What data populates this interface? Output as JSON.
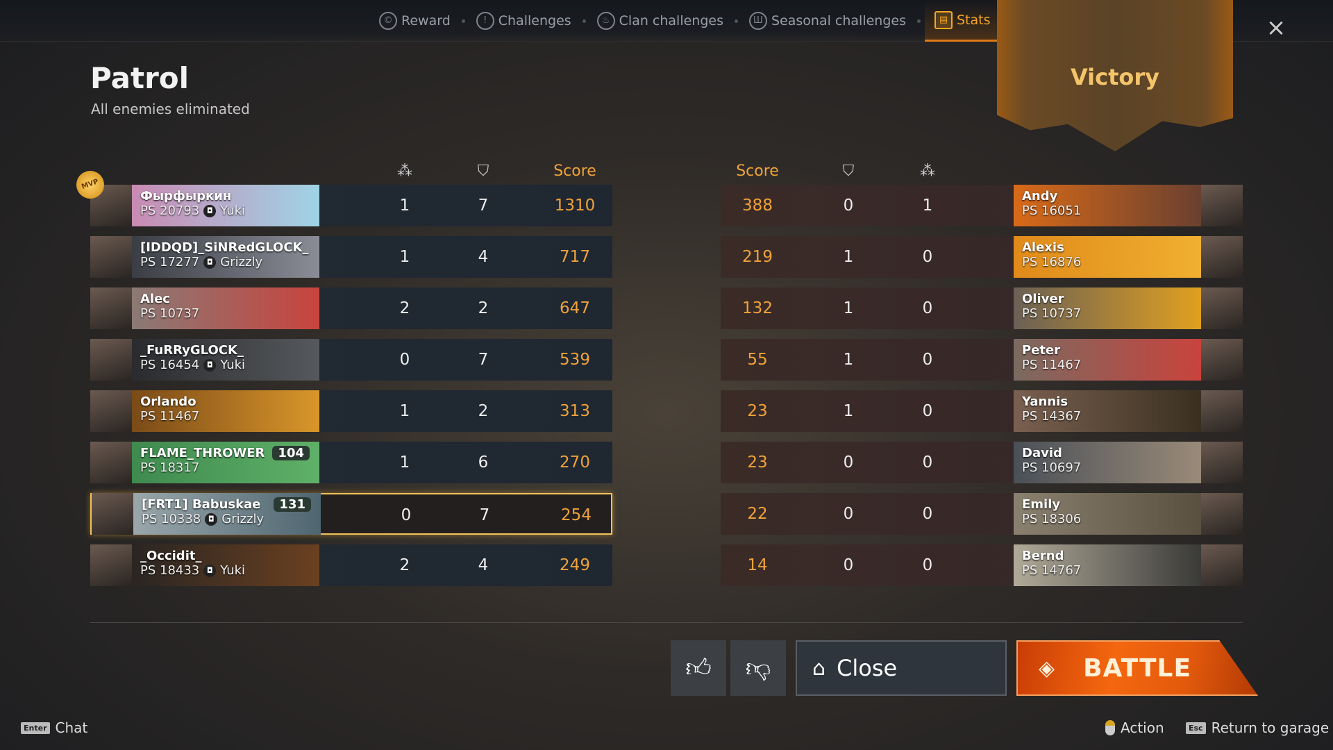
{
  "tabs": [
    {
      "label": "Reward",
      "icon": "reward-icon",
      "glyph": "©"
    },
    {
      "label": "Challenges",
      "icon": "challenges-icon",
      "glyph": "!"
    },
    {
      "label": "Clan challenges",
      "icon": "clan-challenges-icon",
      "glyph": "♨"
    },
    {
      "label": "Seasonal challenges",
      "icon": "seasonal-challenges-icon",
      "glyph": "Ш"
    },
    {
      "label": "Stats",
      "icon": "stats-icon",
      "glyph": "▤",
      "active": true
    }
  ],
  "header": {
    "title": "Patrol",
    "subtitle": "All enemies eliminated",
    "result": "Victory"
  },
  "columns": {
    "score": "Score",
    "kills_icon": "kills-icon",
    "deaths_icon": "shield-icon"
  },
  "mvp_badge": "MVP",
  "accent": "#f0a33a",
  "team_left": [
    {
      "name": "Фырфыркин",
      "ps": "PS 20793",
      "clan": "Yuki",
      "kills": "1",
      "assists": "7",
      "score": "1310",
      "bg": [
        "#c98ab3",
        "#9fd3e6"
      ]
    },
    {
      "name": "[IDDQD]_SiNRedGLOCK_",
      "ps": "PS 17277",
      "clan": "Grizzly",
      "kills": "1",
      "assists": "4",
      "score": "717",
      "bg": [
        "#3a3d44",
        "#8a8d96"
      ]
    },
    {
      "name": "Alec",
      "ps": "PS 10737",
      "clan": "",
      "kills": "2",
      "assists": "2",
      "score": "647",
      "bg": [
        "#8a7a75",
        "#c9433d"
      ]
    },
    {
      "name": "_FuRRyGLOCK_",
      "ps": "PS 16454",
      "clan": "Yuki",
      "kills": "0",
      "assists": "7",
      "score": "539",
      "bg": [
        "#2a2b2e",
        "#55585c"
      ]
    },
    {
      "name": "Orlando",
      "ps": "PS 11467",
      "clan": "",
      "kills": "1",
      "assists": "2",
      "score": "313",
      "bg": [
        "#7a4a18",
        "#d9962a"
      ]
    },
    {
      "name": "FLAME_THROWER",
      "ps": "PS 18317",
      "clan": "",
      "level": "104",
      "kills": "1",
      "assists": "6",
      "score": "270",
      "bg": [
        "#3f8a4f",
        "#5fb068"
      ]
    },
    {
      "name": "[FRT1] Babuskae",
      "ps": "PS 10338",
      "clan": "Grizzly",
      "level": "131",
      "kills": "0",
      "assists": "7",
      "score": "254",
      "bg": [
        "#9aa7ab",
        "#4e6570"
      ],
      "me": true
    },
    {
      "name": "_Occidit_",
      "ps": "PS 18433",
      "clan": "Yuki",
      "kills": "2",
      "assists": "4",
      "score": "249",
      "bg": [
        "#2a2522",
        "#6a4020"
      ]
    }
  ],
  "team_right": [
    {
      "name": "Andy",
      "ps": "PS 16051",
      "score": "388",
      "deaths": "0",
      "kills": "1",
      "bg": [
        "#d86a18",
        "#6a4030"
      ]
    },
    {
      "name": "Alexis",
      "ps": "PS 16876",
      "score": "219",
      "deaths": "1",
      "kills": "0",
      "bg": [
        "#e08a1a",
        "#f0b030"
      ]
    },
    {
      "name": "Oliver",
      "ps": "PS 10737",
      "score": "132",
      "deaths": "1",
      "kills": "0",
      "bg": [
        "#6a6055",
        "#e0a020"
      ]
    },
    {
      "name": "Peter",
      "ps": "PS 11467",
      "score": "55",
      "deaths": "1",
      "kills": "0",
      "bg": [
        "#7a6a60",
        "#c9433d"
      ]
    },
    {
      "name": "Yannis",
      "ps": "PS 14367",
      "score": "23",
      "deaths": "1",
      "kills": "0",
      "bg": [
        "#7a6050",
        "#3a3020"
      ]
    },
    {
      "name": "David",
      "ps": "PS 10697",
      "score": "23",
      "deaths": "0",
      "kills": "0",
      "bg": [
        "#4a5058",
        "#9a8a78"
      ]
    },
    {
      "name": "Emily",
      "ps": "PS 18306",
      "score": "22",
      "deaths": "0",
      "kills": "0",
      "bg": [
        "#8a8070",
        "#5a5040"
      ]
    },
    {
      "name": "Bernd",
      "ps": "PS 14767",
      "score": "14",
      "deaths": "0",
      "kills": "0",
      "bg": [
        "#b0aa98",
        "#3a3a38"
      ]
    }
  ],
  "buttons": {
    "close": "Close",
    "battle": "BATTLE"
  },
  "hints": {
    "chat_key": "Enter",
    "chat": "Chat",
    "action": "Action",
    "esc_key": "Esc",
    "return": "Return to garage"
  }
}
